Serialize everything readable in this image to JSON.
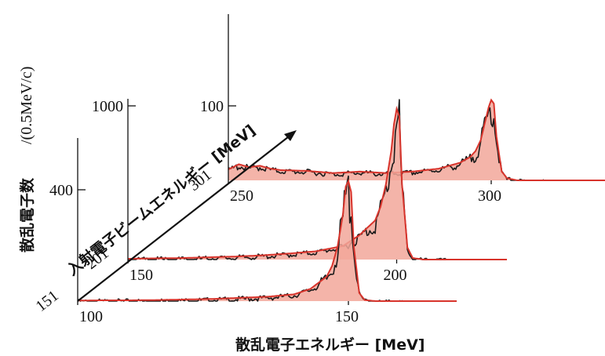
{
  "chart_data": {
    "type": "line",
    "title": "",
    "xlabel": "散乱電子エネルギー [MeV]",
    "ylabel": "散乱電子数",
    "yunit": "/(0.5MeV/c)",
    "depth_axis_label": "入射電子ビームエネルギー [MeV]",
    "series": [
      {
        "name": "151",
        "x": [
          100,
          105,
          110,
          115,
          120,
          125,
          130,
          135,
          140,
          143,
          146,
          147,
          148,
          149,
          149.5,
          150,
          150.5,
          151,
          152,
          153,
          155,
          160
        ],
        "y": [
          2,
          3,
          3,
          4,
          6,
          8,
          12,
          16,
          25,
          45,
          90,
          130,
          200,
          320,
          420,
          440,
          400,
          200,
          30,
          4,
          0,
          0
        ],
        "x_ticks": [
          100,
          150
        ],
        "y_tick": 400
      },
      {
        "name": "201",
        "x": [
          150,
          155,
          160,
          165,
          170,
          175,
          180,
          185,
          190,
          193,
          196,
          197,
          198,
          199,
          199.5,
          200,
          200.5,
          201,
          202,
          203,
          205,
          210
        ],
        "y": [
          5,
          8,
          10,
          15,
          20,
          28,
          40,
          55,
          90,
          160,
          260,
          350,
          500,
          720,
          900,
          1000,
          950,
          500,
          80,
          10,
          0,
          0
        ],
        "x_ticks": [
          150,
          200
        ],
        "y_tick": 1000
      },
      {
        "name": "301",
        "x": [
          250,
          252,
          254,
          256,
          258,
          260,
          265,
          270,
          275,
          280,
          285,
          290,
          292,
          294,
          296,
          297,
          298,
          299,
          299.5,
          300,
          300.5,
          301,
          302,
          303,
          305,
          310
        ],
        "y": [
          15,
          22,
          18,
          20,
          16,
          14,
          13,
          10,
          12,
          10,
          12,
          16,
          20,
          24,
          32,
          40,
          55,
          85,
          100,
          110,
          105,
          60,
          12,
          3,
          0,
          0
        ],
        "x_ticks": [
          250,
          300
        ],
        "y_tick": 100
      }
    ],
    "colors": {
      "fit": "#d8342c",
      "fill": "#f2a79a",
      "data": "#1a1a1a"
    }
  }
}
